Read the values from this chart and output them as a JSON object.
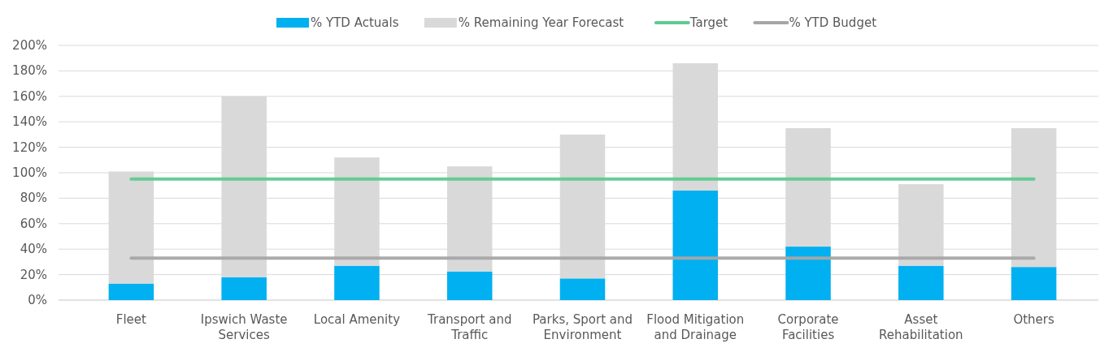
{
  "chart_data": {
    "type": "bar",
    "stacked": true,
    "categories": [
      "Fleet",
      "Ipswich Waste Services",
      "Local Amenity",
      "Transport and Traffic",
      "Parks, Sport and Environment",
      "Flood Mitigation and Drainage",
      "Corporate Facilities",
      "Asset Rehabilitation",
      "Others"
    ],
    "series": [
      {
        "name": "% YTD Actuals",
        "color": "#00b0f0",
        "values": [
          13,
          18,
          27,
          22.5,
          17,
          86,
          42,
          27,
          26
        ]
      },
      {
        "name": "% Remaining Year Forecast",
        "color": "#d9d9d9",
        "values": [
          88,
          142,
          85,
          82.5,
          113,
          100,
          93,
          64,
          109
        ]
      },
      {
        "name": "Target",
        "type": "line",
        "color": "#5ecb8e",
        "values": [
          95,
          95,
          95,
          95,
          95,
          95,
          95,
          95,
          95
        ]
      },
      {
        "name": "% YTD Budget",
        "type": "line",
        "color": "#a6a6a6",
        "values": [
          33,
          33,
          33,
          33,
          33,
          33,
          33,
          33,
          33
        ]
      }
    ],
    "ylim": [
      0,
      200
    ],
    "yticks": [
      {
        "value": 0,
        "label": "0%"
      },
      {
        "value": 20,
        "label": "20%"
      },
      {
        "value": 40,
        "label": "40%"
      },
      {
        "value": 60,
        "label": "60%"
      },
      {
        "value": 80,
        "label": "80%"
      },
      {
        "value": 100,
        "label": "100%"
      },
      {
        "value": 120,
        "label": "120%"
      },
      {
        "value": 140,
        "label": "140%"
      },
      {
        "value": 160,
        "label": "160%"
      },
      {
        "value": 180,
        "label": "180%"
      },
      {
        "value": 200,
        "label": "200%"
      }
    ],
    "grid": "y",
    "legend": "top",
    "marker": "none",
    "line_style": "solid"
  }
}
